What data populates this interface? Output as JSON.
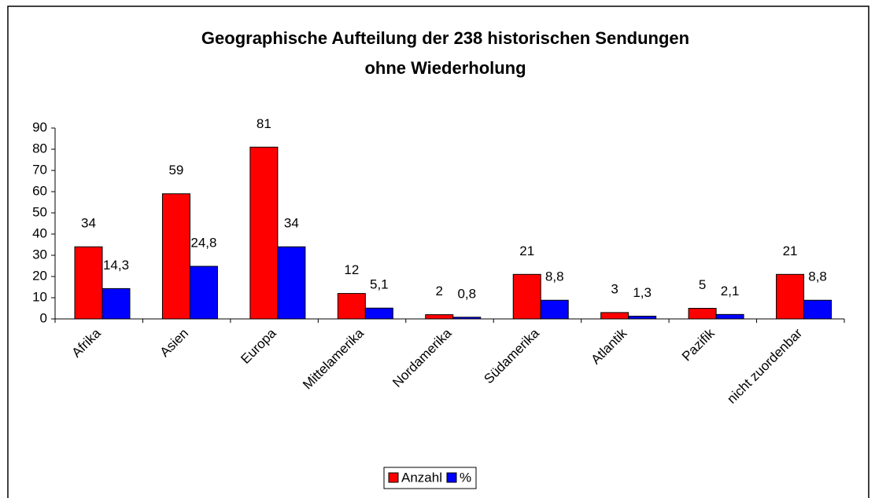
{
  "chart_data": {
    "type": "bar",
    "title": "Geographische Aufteilung der 238 historischen Sendungen",
    "subtitle": "ohne Wiederholung",
    "categories": [
      "Afrika",
      "Asien",
      "Europa",
      "Mittelamerika",
      "Nordamerika",
      "Südamerika",
      "Atlantik",
      "Pazifik",
      "nicht zuordenbar"
    ],
    "series": [
      {
        "name": "Anzahl",
        "color": "#ff0000",
        "values": [
          34,
          59,
          81,
          12,
          2,
          21,
          3,
          5,
          21
        ]
      },
      {
        "name": "%",
        "color": "#0000ff",
        "values": [
          14.3,
          24.8,
          34,
          5.1,
          0.8,
          8.8,
          1.3,
          2.1,
          8.8
        ],
        "value_labels": [
          "14,3",
          "24,8",
          "34",
          "5,1",
          "0,8",
          "8,8",
          "1,3",
          "2,1",
          "8,8"
        ]
      }
    ],
    "ylim": [
      0,
      90
    ],
    "yticks": [
      0,
      10,
      20,
      30,
      40,
      50,
      60,
      70,
      80,
      90
    ],
    "legend": "bottom"
  }
}
